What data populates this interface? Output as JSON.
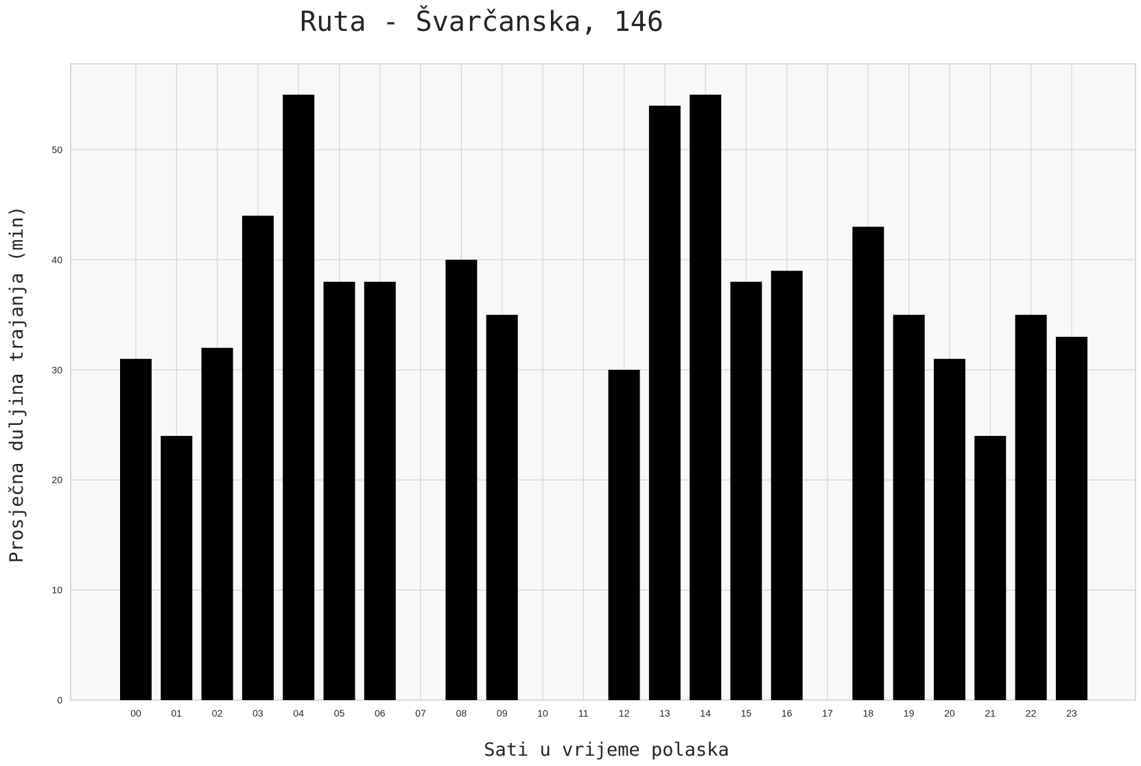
{
  "chart_data": {
    "type": "bar",
    "title": "Ruta - Švarčanska, 146",
    "xlabel": "Sati u vrijeme polaska",
    "ylabel": "Prosječna duljina trajanja (min)",
    "categories": [
      "00",
      "01",
      "02",
      "03",
      "04",
      "05",
      "06",
      "07",
      "08",
      "09",
      "10",
      "11",
      "12",
      "13",
      "14",
      "15",
      "16",
      "17",
      "18",
      "19",
      "20",
      "21",
      "22",
      "23"
    ],
    "values": [
      31,
      24,
      32,
      44,
      55,
      38,
      38,
      0,
      40,
      35,
      0,
      0,
      30,
      54,
      55,
      38,
      39,
      0,
      43,
      35,
      31,
      24,
      35,
      33
    ],
    "yticks": [
      0,
      10,
      20,
      30,
      40,
      50
    ],
    "ylim": [
      0,
      57.8
    ],
    "grid": true,
    "bar_color": "#000000",
    "background_color": "#f8f8f8"
  }
}
